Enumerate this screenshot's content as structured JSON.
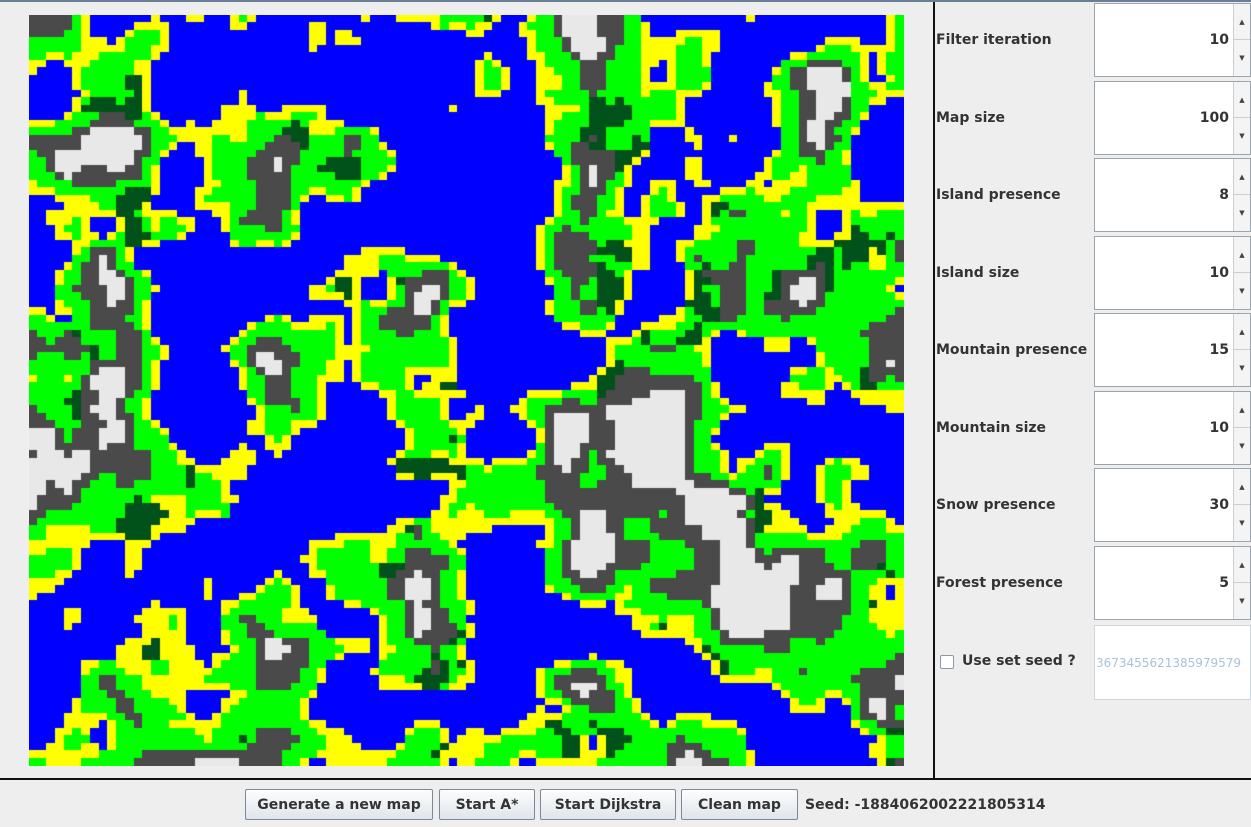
{
  "map": {
    "grid_size": 100,
    "colors": {
      "water": "#0000ff",
      "sand": "#ffff00",
      "grass": "#00ff00",
      "forest": "#00521a",
      "mountain": "#4a4a4a",
      "snow": "#e8e8e8"
    }
  },
  "params": [
    {
      "label": "Filter iteration",
      "value": "10"
    },
    {
      "label": "Map size",
      "value": "100"
    },
    {
      "label": "Island presence",
      "value": "8"
    },
    {
      "label": "Island size",
      "value": "10"
    },
    {
      "label": "Mountain presence",
      "value": "15"
    },
    {
      "label": "Mountain size",
      "value": "10"
    },
    {
      "label": "Snow presence",
      "value": "30"
    },
    {
      "label": "Forest presence",
      "value": "5"
    }
  ],
  "seed_option": {
    "checkbox_label": "Use set seed ?",
    "checked": false,
    "placeholder": "3673455621385979579"
  },
  "buttons": {
    "generate": "Generate a new map",
    "astar": "Start A*",
    "dijkstra": "Start Dijkstra",
    "clean": "Clean map"
  },
  "status": {
    "seed": "Seed: -1884062002221805314"
  }
}
